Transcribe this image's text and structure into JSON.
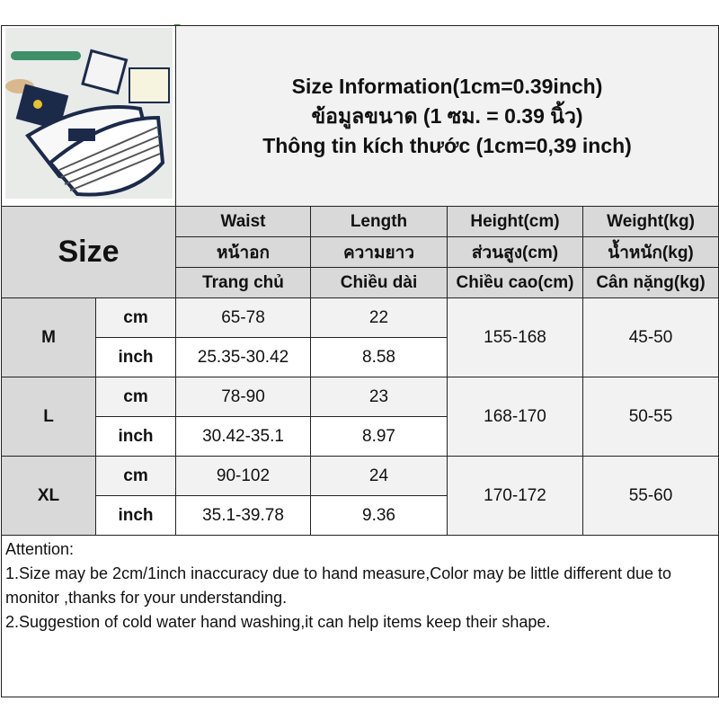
{
  "title_lines": [
    "Size Information(1cm=0.39inch)",
    "ข้อมูลขนาด (1 ซม. = 0.39 นิ้ว)",
    "Thông tin kích thước (1cm=0,39 inch)"
  ],
  "size_label": "Size",
  "headers": [
    [
      "Waist",
      "หน้าอก",
      "Trang chủ"
    ],
    [
      "Length",
      "ความยาว",
      "Chiều dài"
    ],
    [
      "Height(cm)",
      "ส่วนสูง(cm)",
      "Chiều cao(cm)"
    ],
    [
      "Weight(kg)",
      "น้ำหนัก(kg)",
      "Cân nặng(kg)"
    ]
  ],
  "rows": [
    {
      "size": "M",
      "cm": {
        "unit": "cm",
        "waist": "65-78",
        "length": "22"
      },
      "inch": {
        "unit": "inch",
        "waist": "25.35-30.42",
        "length": "8.58"
      },
      "height": "155-168",
      "weight": "45-50"
    },
    {
      "size": "L",
      "cm": {
        "unit": "cm",
        "waist": "78-90",
        "length": "23"
      },
      "inch": {
        "unit": "inch",
        "waist": "30.42-35.1",
        "length": "8.97"
      },
      "height": "168-170",
      "weight": "50-55"
    },
    {
      "size": "XL",
      "cm": {
        "unit": "cm",
        "waist": "90-102",
        "length": "24"
      },
      "inch": {
        "unit": "inch",
        "waist": "35.1-39.78",
        "length": "9.36"
      },
      "height": "170-172",
      "weight": "55-60"
    }
  ],
  "attention": [
    "Attention:",
    "1.Size may be 2cm/1inch inaccuracy due to hand measure,Color may be little different due to monitor ,thanks for your understanding.",
    "2.Suggestion of cold water hand washing,it can help items keep their shape."
  ],
  "product_image": {
    "icon": "product-photo-underwear",
    "colors": {
      "navy": "#1c2a4a",
      "bg": "#e8ebe8"
    }
  }
}
